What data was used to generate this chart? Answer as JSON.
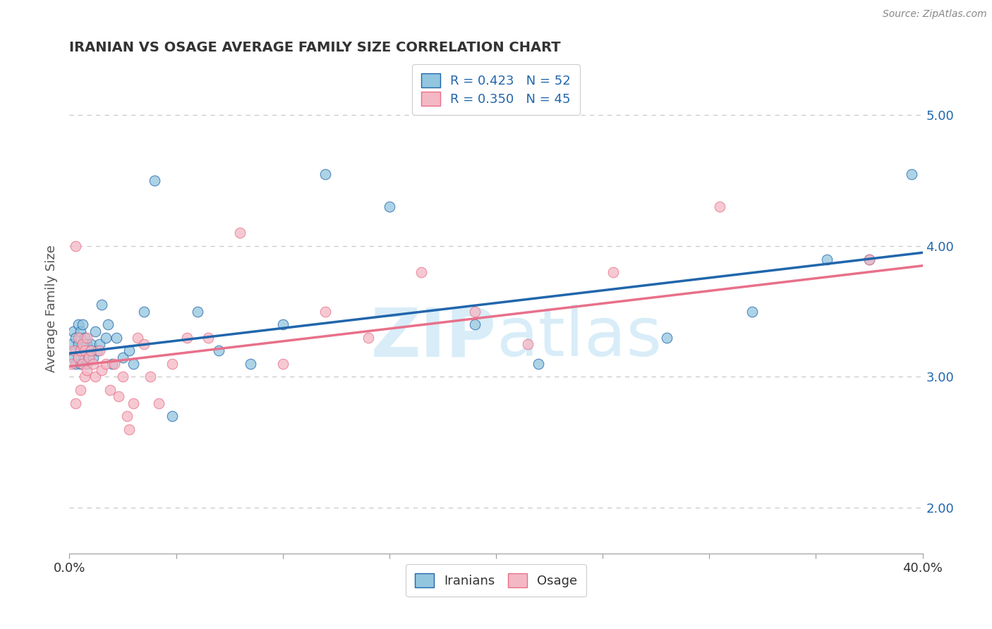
{
  "title": "IRANIAN VS OSAGE AVERAGE FAMILY SIZE CORRELATION CHART",
  "source_text": "Source: ZipAtlas.com",
  "ylabel": "Average Family Size",
  "xlim": [
    0.0,
    0.4
  ],
  "ylim": [
    1.65,
    5.4
  ],
  "yticks": [
    2.0,
    3.0,
    4.0,
    5.0
  ],
  "ytick_labels_right": [
    "2.00",
    "3.00",
    "4.00",
    "5.00"
  ],
  "xtick_positions": [
    0.0,
    0.05,
    0.1,
    0.15,
    0.2,
    0.25,
    0.3,
    0.35,
    0.4
  ],
  "xtick_show_labels": [
    0.0,
    0.4
  ],
  "iranian_R": 0.423,
  "iranian_N": 52,
  "osage_R": 0.35,
  "osage_N": 45,
  "iranian_color": "#92c5de",
  "osage_color": "#f4b8c4",
  "line_iranian_color": "#2166ac",
  "line_osage_color": "#e8708a",
  "background_color": "#ffffff",
  "grid_color": "#c8c8c8",
  "watermark_color": "#d8edf8",
  "iranians_x": [
    0.001,
    0.002,
    0.002,
    0.003,
    0.003,
    0.003,
    0.004,
    0.004,
    0.004,
    0.005,
    0.005,
    0.005,
    0.005,
    0.006,
    0.006,
    0.006,
    0.007,
    0.007,
    0.007,
    0.008,
    0.008,
    0.009,
    0.01,
    0.01,
    0.011,
    0.012,
    0.013,
    0.014,
    0.015,
    0.017,
    0.018,
    0.02,
    0.022,
    0.025,
    0.028,
    0.03,
    0.035,
    0.04,
    0.048,
    0.06,
    0.07,
    0.085,
    0.1,
    0.12,
    0.15,
    0.19,
    0.22,
    0.28,
    0.32,
    0.355,
    0.375,
    0.395
  ],
  "iranians_y": [
    3.25,
    3.15,
    3.35,
    3.2,
    3.1,
    3.3,
    3.15,
    3.25,
    3.4,
    3.1,
    3.2,
    3.3,
    3.35,
    3.1,
    3.25,
    3.4,
    3.15,
    3.25,
    3.3,
    3.1,
    3.25,
    3.15,
    3.25,
    3.2,
    3.15,
    3.35,
    3.2,
    3.25,
    3.55,
    3.3,
    3.4,
    3.1,
    3.3,
    3.15,
    3.2,
    3.1,
    3.5,
    4.5,
    2.7,
    3.5,
    3.2,
    3.1,
    3.4,
    4.55,
    4.3,
    3.4,
    3.1,
    3.3,
    3.5,
    3.9,
    3.9,
    4.55
  ],
  "osage_x": [
    0.001,
    0.002,
    0.003,
    0.003,
    0.004,
    0.004,
    0.005,
    0.005,
    0.006,
    0.006,
    0.007,
    0.007,
    0.008,
    0.008,
    0.009,
    0.01,
    0.011,
    0.012,
    0.014,
    0.015,
    0.017,
    0.019,
    0.021,
    0.023,
    0.025,
    0.027,
    0.028,
    0.03,
    0.032,
    0.035,
    0.038,
    0.042,
    0.048,
    0.055,
    0.065,
    0.08,
    0.1,
    0.12,
    0.14,
    0.165,
    0.19,
    0.215,
    0.255,
    0.305,
    0.375
  ],
  "osage_y": [
    3.1,
    3.2,
    4.0,
    2.8,
    3.15,
    3.3,
    3.2,
    2.9,
    3.1,
    3.25,
    3.0,
    3.2,
    3.3,
    3.05,
    3.15,
    3.2,
    3.1,
    3.0,
    3.2,
    3.05,
    3.1,
    2.9,
    3.1,
    2.85,
    3.0,
    2.7,
    2.6,
    2.8,
    3.3,
    3.25,
    3.0,
    2.8,
    3.1,
    3.3,
    3.3,
    4.1,
    3.1,
    3.5,
    3.3,
    3.8,
    3.5,
    3.25,
    3.8,
    4.3,
    3.9
  ],
  "iran_line_x0": 0.0,
  "iran_line_y0": 3.18,
  "iran_line_x1": 0.4,
  "iran_line_y1": 3.95,
  "osage_line_x0": 0.0,
  "osage_line_y0": 3.08,
  "osage_line_x1": 0.4,
  "osage_line_y1": 3.85
}
